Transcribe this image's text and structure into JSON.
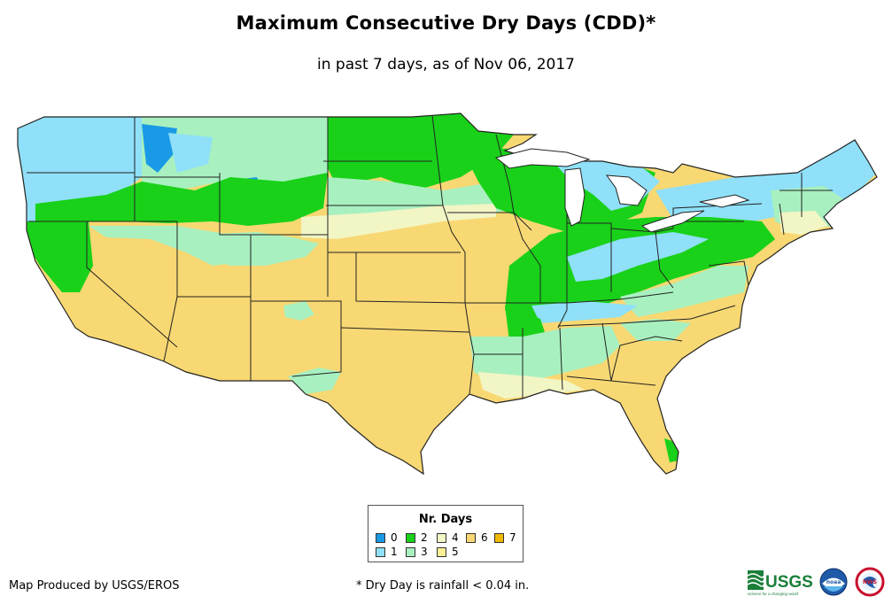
{
  "title": "Maximum Consecutive Dry Days (CDD)*",
  "subtitle": "in past 7 days, as of Nov 06, 2017",
  "legend": {
    "title": "Nr. Days",
    "items": [
      {
        "label": "0",
        "color": "#1a9ae6"
      },
      {
        "label": "1",
        "color": "#8fe0f8"
      },
      {
        "label": "2",
        "color": "#19d119"
      },
      {
        "label": "3",
        "color": "#a8f0c0"
      },
      {
        "label": "4",
        "color": "#f2f5c4"
      },
      {
        "label": "5",
        "color": "#fcee94"
      },
      {
        "label": "6",
        "color": "#f8d873"
      },
      {
        "label": "7",
        "color": "#f0b800"
      }
    ]
  },
  "credit": "Map Produced by USGS/EROS",
  "footnote": "* Dry Day is rainfall < 0.04 in.",
  "logos": {
    "usgs_text": "USGS",
    "usgs_tagline": "science for a changing world",
    "noaa_text": "noaa",
    "nws_text": "NWS"
  }
}
